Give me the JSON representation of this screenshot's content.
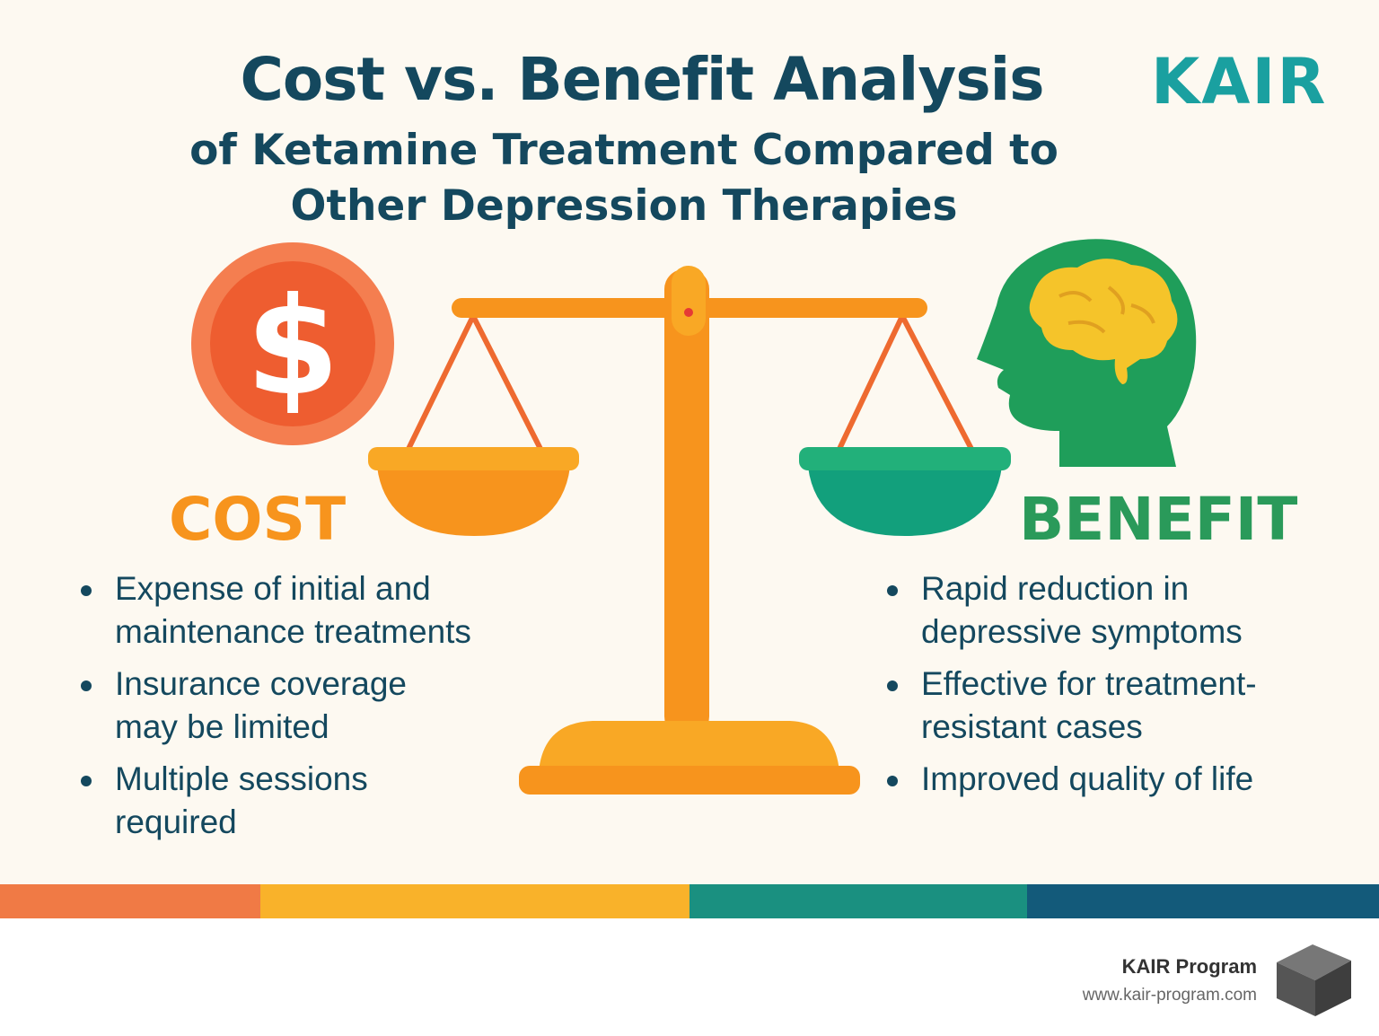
{
  "header": {
    "title": "Cost vs. Benefit Analysis",
    "subtitle": [
      "of Ketamine Treatment Compared to",
      "Other Depression Therapies"
    ],
    "logo": "KAIR"
  },
  "cost": {
    "icon": "$",
    "label": "COST",
    "items": [
      [
        "Expense of initial and",
        "maintenance treatments"
      ],
      [
        "Insurance coverage",
        "may be limited"
      ],
      [
        "Multiple sessions",
        "required"
      ]
    ]
  },
  "benefit": {
    "label": "BENEFIT",
    "items": [
      [
        "Rapid reduction in",
        "depressive symptoms"
      ],
      [
        "Effective for treatment-",
        "resistant cases"
      ],
      [
        "Improved quality of life"
      ]
    ]
  },
  "footer": {
    "name": "KAIR Program",
    "url": "www.kair-program.com"
  }
}
